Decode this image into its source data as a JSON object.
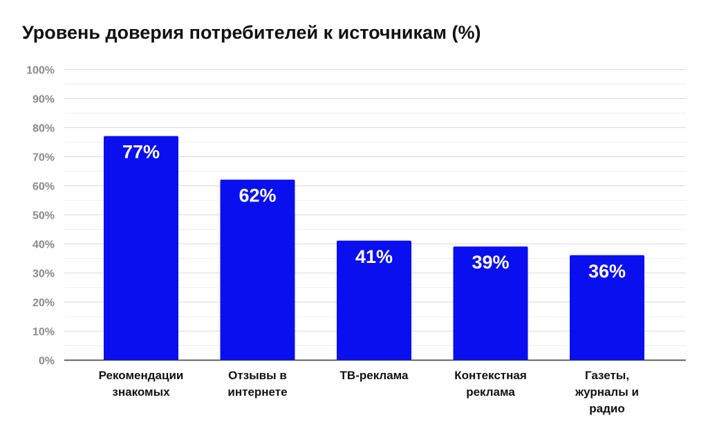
{
  "chart_data": {
    "type": "bar",
    "title": "Уровень доверия потребителей к источникам (%)",
    "categories": [
      [
        "Рекомендации",
        "знакомых"
      ],
      [
        "Отзывы в",
        "интернете"
      ],
      [
        "ТВ-реклама"
      ],
      [
        "Контекстная",
        "реклама"
      ],
      [
        "Газеты,",
        "журналы и",
        "радио"
      ]
    ],
    "values": [
      77,
      62,
      41,
      39,
      36
    ],
    "data_labels": [
      "77%",
      "62%",
      "41%",
      "39%",
      "36%"
    ],
    "ylim": [
      0,
      100
    ],
    "yticks": [
      0,
      10,
      20,
      30,
      40,
      50,
      60,
      70,
      80,
      90,
      100
    ],
    "ytick_labels": [
      "0%",
      "10%",
      "20%",
      "30%",
      "40%",
      "50%",
      "60%",
      "70%",
      "80%",
      "90%",
      "100%"
    ],
    "grid": true,
    "bar_color": "#0a0ff0",
    "grid_color": "#d9d9d9",
    "axis_color": "#333333"
  }
}
